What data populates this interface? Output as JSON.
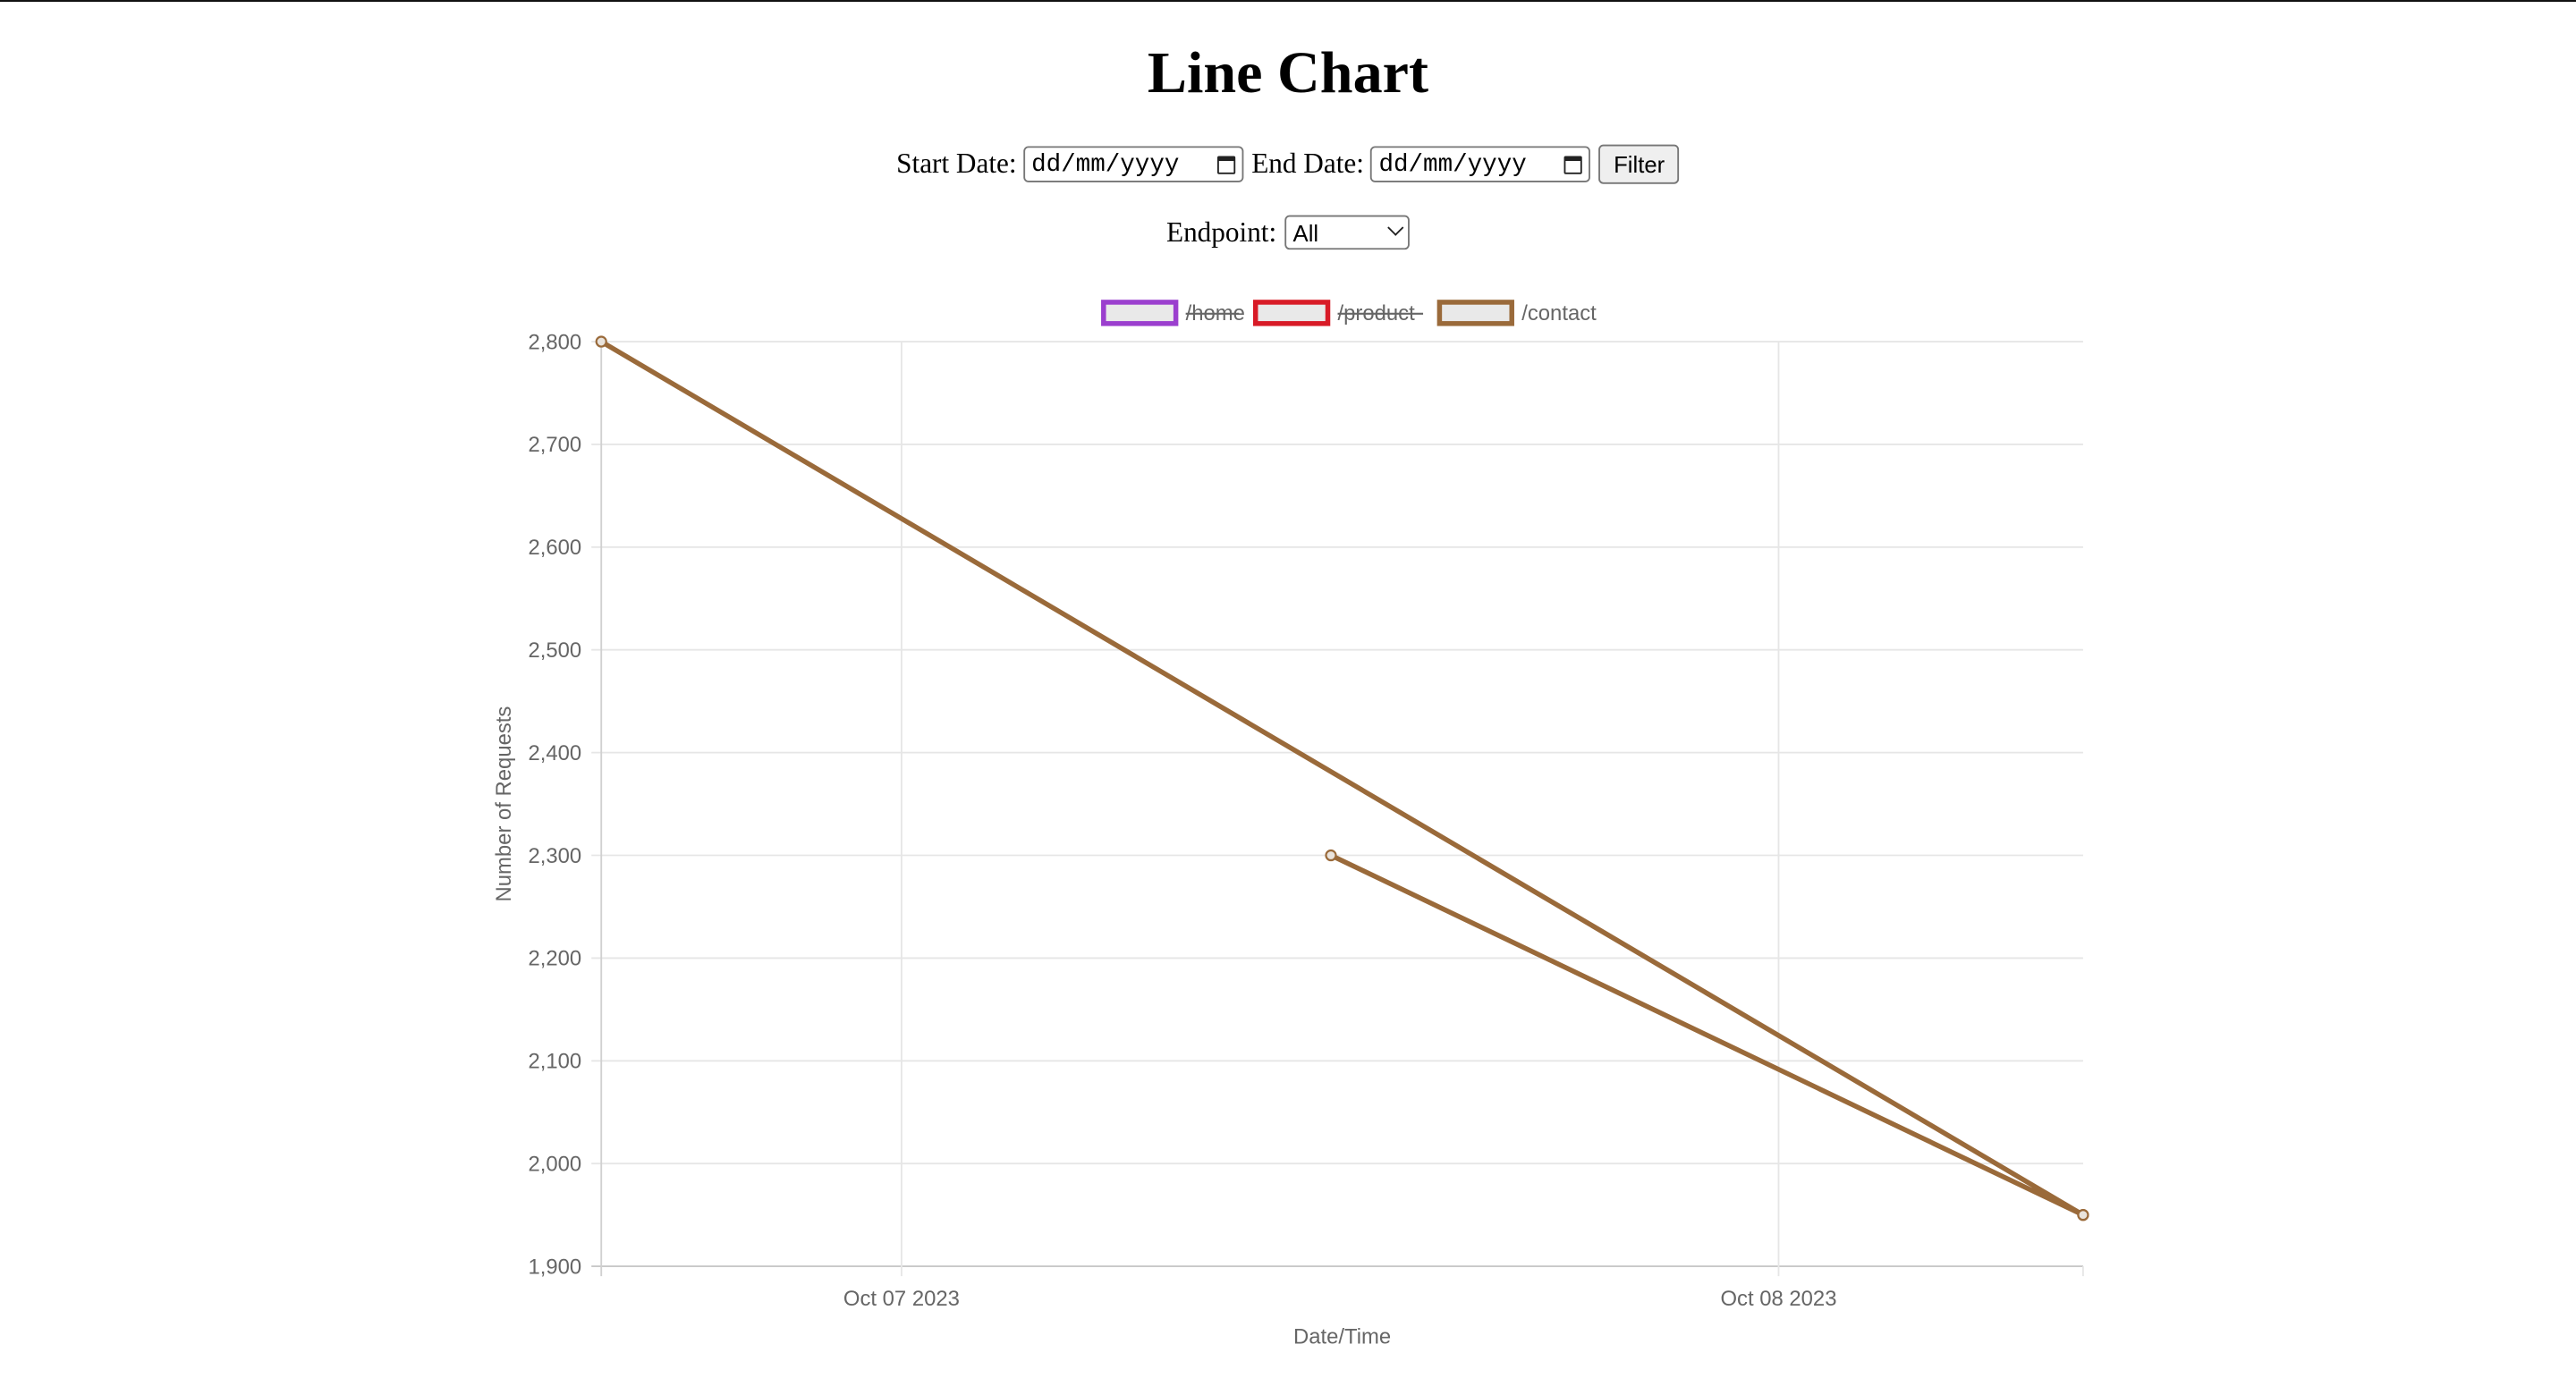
{
  "page": {
    "title": "Line Chart",
    "start_date_label": "Start Date:",
    "start_date_placeholder": "dd/mm/yyyy",
    "end_date_label": "End Date:",
    "end_date_placeholder": "dd/mm/yyyy",
    "filter_button": "Filter",
    "endpoint_label": "Endpoint:",
    "endpoint_selected": "All"
  },
  "chart_data": {
    "type": "line",
    "title": "",
    "xlabel": "Date/Time",
    "ylabel": "Number of Requests",
    "x_tick_labels": [
      "Oct 07 2023",
      "Oct 08 2023"
    ],
    "x_tick_dates": [
      "2023-10-07T00:00",
      "2023-10-08T00:00"
    ],
    "xlim": [
      "2023-10-06T15:47",
      "2023-10-08T08:20"
    ],
    "ylim": [
      1900,
      2800
    ],
    "y_ticks": [
      1900,
      2000,
      2100,
      2200,
      2300,
      2400,
      2500,
      2600,
      2700,
      2800
    ],
    "y_tick_labels": [
      "1,900",
      "2,000",
      "2,100",
      "2,200",
      "2,300",
      "2,400",
      "2,500",
      "2,600",
      "2,700",
      "2,800"
    ],
    "grid": true,
    "legend_position": "top",
    "series": [
      {
        "name": "/home",
        "color": "#9b3fce",
        "hidden": true,
        "points": []
      },
      {
        "name": "/product",
        "color": "#d81b27",
        "hidden": true,
        "points": []
      },
      {
        "name": "/contact",
        "color": "#9a6a3a",
        "hidden": false,
        "points": [
          {
            "x": "2023-10-06T15:47",
            "y": 2800
          },
          {
            "x": "2023-10-08T08:20",
            "y": 1950
          },
          {
            "x": "2023-10-07T11:45",
            "y": 2300
          },
          {
            "x": "2023-10-08T08:20",
            "y": 1950
          }
        ]
      }
    ]
  }
}
